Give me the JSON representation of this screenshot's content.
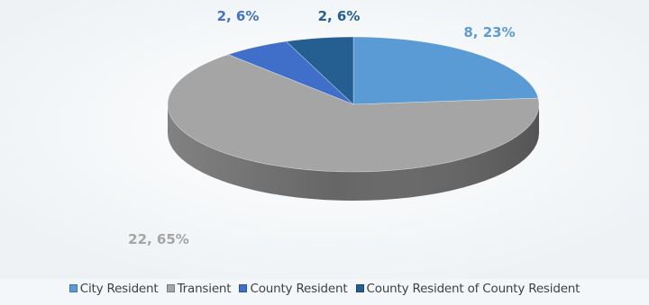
{
  "chart_data": {
    "type": "pie",
    "title": "",
    "categories": [
      "City Resident",
      "Transient",
      "County Resident",
      "County Resident of County Resident"
    ],
    "values": [
      8,
      22,
      2,
      2
    ],
    "percents": [
      23,
      65,
      6,
      6
    ],
    "data_labels": [
      "8, 23%",
      "22, 65%",
      "2, 6%",
      "2, 6%"
    ],
    "colors": {
      "City Resident": "#5b9bd5",
      "Transient": "#a5a5a5",
      "County Resident": "#3f6fc8",
      "County Resident of County Resident": "#255e91"
    },
    "label_colors": [
      "#5b9bd5",
      "#a5a5a5",
      "#4472c4",
      "#255e91"
    ],
    "style": "3d",
    "legend_position": "bottom"
  },
  "legend": {
    "items": [
      {
        "label": "City Resident"
      },
      {
        "label": "Transient"
      },
      {
        "label": "County Resident"
      },
      {
        "label": "County Resident of County Resident"
      }
    ]
  }
}
